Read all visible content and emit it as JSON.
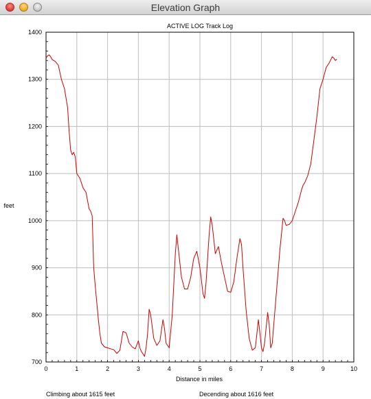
{
  "window": {
    "title": "Elevation Graph"
  },
  "chart_data": {
    "type": "line",
    "title": "ACTIVE LOG Track Log",
    "xlabel": "Distance in miles",
    "ylabel": "feet",
    "xlim": [
      0,
      10
    ],
    "ylim": [
      700,
      1400
    ],
    "x_ticks": [
      "0",
      "1",
      "2",
      "3",
      "4",
      "5",
      "6",
      "7",
      "8",
      "9",
      "10"
    ],
    "y_ticks": [
      "700",
      "800",
      "900",
      "1000",
      "1100",
      "1200",
      "1300",
      "1400"
    ],
    "grid": true,
    "line_color": "#cc0000",
    "series": [
      {
        "points": [
          [
            0.0,
            1345
          ],
          [
            0.05,
            1350
          ],
          [
            0.1,
            1352
          ],
          [
            0.15,
            1348
          ],
          [
            0.2,
            1342
          ],
          [
            0.3,
            1338
          ],
          [
            0.4,
            1330
          ],
          [
            0.5,
            1300
          ],
          [
            0.6,
            1280
          ],
          [
            0.7,
            1240
          ],
          [
            0.75,
            1190
          ],
          [
            0.8,
            1150
          ],
          [
            0.85,
            1140
          ],
          [
            0.9,
            1145
          ],
          [
            0.95,
            1135
          ],
          [
            1.0,
            1100
          ],
          [
            1.05,
            1095
          ],
          [
            1.1,
            1090
          ],
          [
            1.2,
            1070
          ],
          [
            1.3,
            1060
          ],
          [
            1.4,
            1025
          ],
          [
            1.45,
            1020
          ],
          [
            1.5,
            1010
          ],
          [
            1.55,
            900
          ],
          [
            1.6,
            860
          ],
          [
            1.7,
            790
          ],
          [
            1.75,
            760
          ],
          [
            1.8,
            740
          ],
          [
            1.9,
            732
          ],
          [
            2.0,
            730
          ],
          [
            2.1,
            728
          ],
          [
            2.2,
            726
          ],
          [
            2.3,
            718
          ],
          [
            2.4,
            725
          ],
          [
            2.5,
            765
          ],
          [
            2.6,
            762
          ],
          [
            2.7,
            740
          ],
          [
            2.8,
            732
          ],
          [
            2.9,
            728
          ],
          [
            3.0,
            745
          ],
          [
            3.05,
            730
          ],
          [
            3.1,
            722
          ],
          [
            3.2,
            712
          ],
          [
            3.25,
            730
          ],
          [
            3.3,
            760
          ],
          [
            3.35,
            812
          ],
          [
            3.4,
            800
          ],
          [
            3.5,
            750
          ],
          [
            3.6,
            735
          ],
          [
            3.7,
            745
          ],
          [
            3.8,
            790
          ],
          [
            3.85,
            770
          ],
          [
            3.9,
            740
          ],
          [
            4.0,
            730
          ],
          [
            4.1,
            800
          ],
          [
            4.2,
            930
          ],
          [
            4.25,
            970
          ],
          [
            4.3,
            940
          ],
          [
            4.4,
            880
          ],
          [
            4.5,
            855
          ],
          [
            4.6,
            855
          ],
          [
            4.7,
            880
          ],
          [
            4.8,
            920
          ],
          [
            4.9,
            935
          ],
          [
            5.0,
            900
          ],
          [
            5.1,
            845
          ],
          [
            5.15,
            835
          ],
          [
            5.2,
            870
          ],
          [
            5.3,
            970
          ],
          [
            5.35,
            1008
          ],
          [
            5.4,
            990
          ],
          [
            5.45,
            960
          ],
          [
            5.5,
            930
          ],
          [
            5.6,
            945
          ],
          [
            5.7,
            910
          ],
          [
            5.8,
            880
          ],
          [
            5.9,
            850
          ],
          [
            6.0,
            848
          ],
          [
            6.1,
            870
          ],
          [
            6.2,
            920
          ],
          [
            6.3,
            962
          ],
          [
            6.35,
            950
          ],
          [
            6.4,
            900
          ],
          [
            6.5,
            810
          ],
          [
            6.6,
            750
          ],
          [
            6.7,
            725
          ],
          [
            6.8,
            730
          ],
          [
            6.85,
            760
          ],
          [
            6.9,
            790
          ],
          [
            6.95,
            760
          ],
          [
            7.0,
            730
          ],
          [
            7.05,
            722
          ],
          [
            7.1,
            740
          ],
          [
            7.2,
            805
          ],
          [
            7.25,
            780
          ],
          [
            7.3,
            730
          ],
          [
            7.35,
            740
          ],
          [
            7.4,
            780
          ],
          [
            7.5,
            860
          ],
          [
            7.6,
            940
          ],
          [
            7.7,
            1005
          ],
          [
            7.75,
            1000
          ],
          [
            7.8,
            990
          ],
          [
            7.9,
            992
          ],
          [
            8.0,
            1000
          ],
          [
            8.1,
            1020
          ],
          [
            8.2,
            1040
          ],
          [
            8.3,
            1065
          ],
          [
            8.35,
            1075
          ],
          [
            8.4,
            1080
          ],
          [
            8.5,
            1095
          ],
          [
            8.6,
            1120
          ],
          [
            8.7,
            1170
          ],
          [
            8.8,
            1220
          ],
          [
            8.9,
            1280
          ],
          [
            9.0,
            1300
          ],
          [
            9.1,
            1325
          ],
          [
            9.2,
            1335
          ],
          [
            9.3,
            1348
          ],
          [
            9.35,
            1345
          ],
          [
            9.4,
            1340
          ],
          [
            9.45,
            1343
          ]
        ]
      }
    ]
  },
  "footer": {
    "climbing": "Climbing about 1615 feet",
    "descending": "Decending about 1616 feet"
  }
}
